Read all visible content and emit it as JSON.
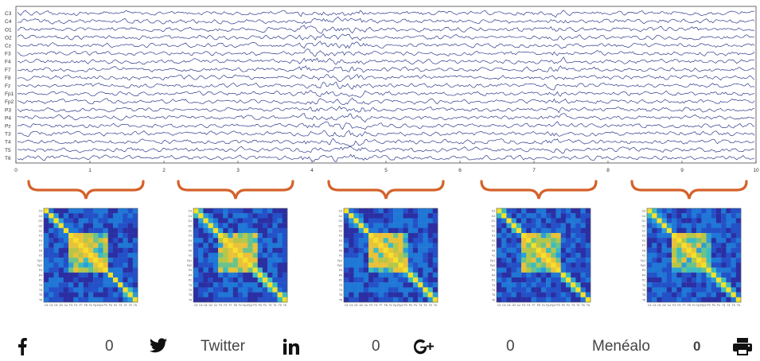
{
  "figure": {
    "channels": [
      "C3",
      "C4",
      "O1",
      "O2",
      "Cz",
      "F3",
      "F4",
      "F7",
      "F8",
      "Fz",
      "Fp1",
      "Fp2",
      "P3",
      "P4",
      "Pz",
      "T3",
      "T4",
      "T5",
      "T6"
    ],
    "x_ticks": [
      "0",
      "1",
      "2",
      "3",
      "4",
      "5",
      "6",
      "7",
      "8",
      "9",
      "10"
    ],
    "trace_color": "#2e3a8c",
    "brace_color": "#d4622a",
    "matrix_count": 5
  },
  "share": {
    "facebook": {
      "icon": "facebook-icon",
      "count": "0"
    },
    "twitter": {
      "icon": "twitter-icon",
      "label": "Twitter"
    },
    "linkedin": {
      "icon": "linkedin-icon",
      "count": "0"
    },
    "googleplus": {
      "icon": "google-plus-icon",
      "count": "0"
    },
    "meneame": {
      "label": "Menéalo",
      "count": "0"
    },
    "print": {
      "icon": "print-icon"
    }
  }
}
